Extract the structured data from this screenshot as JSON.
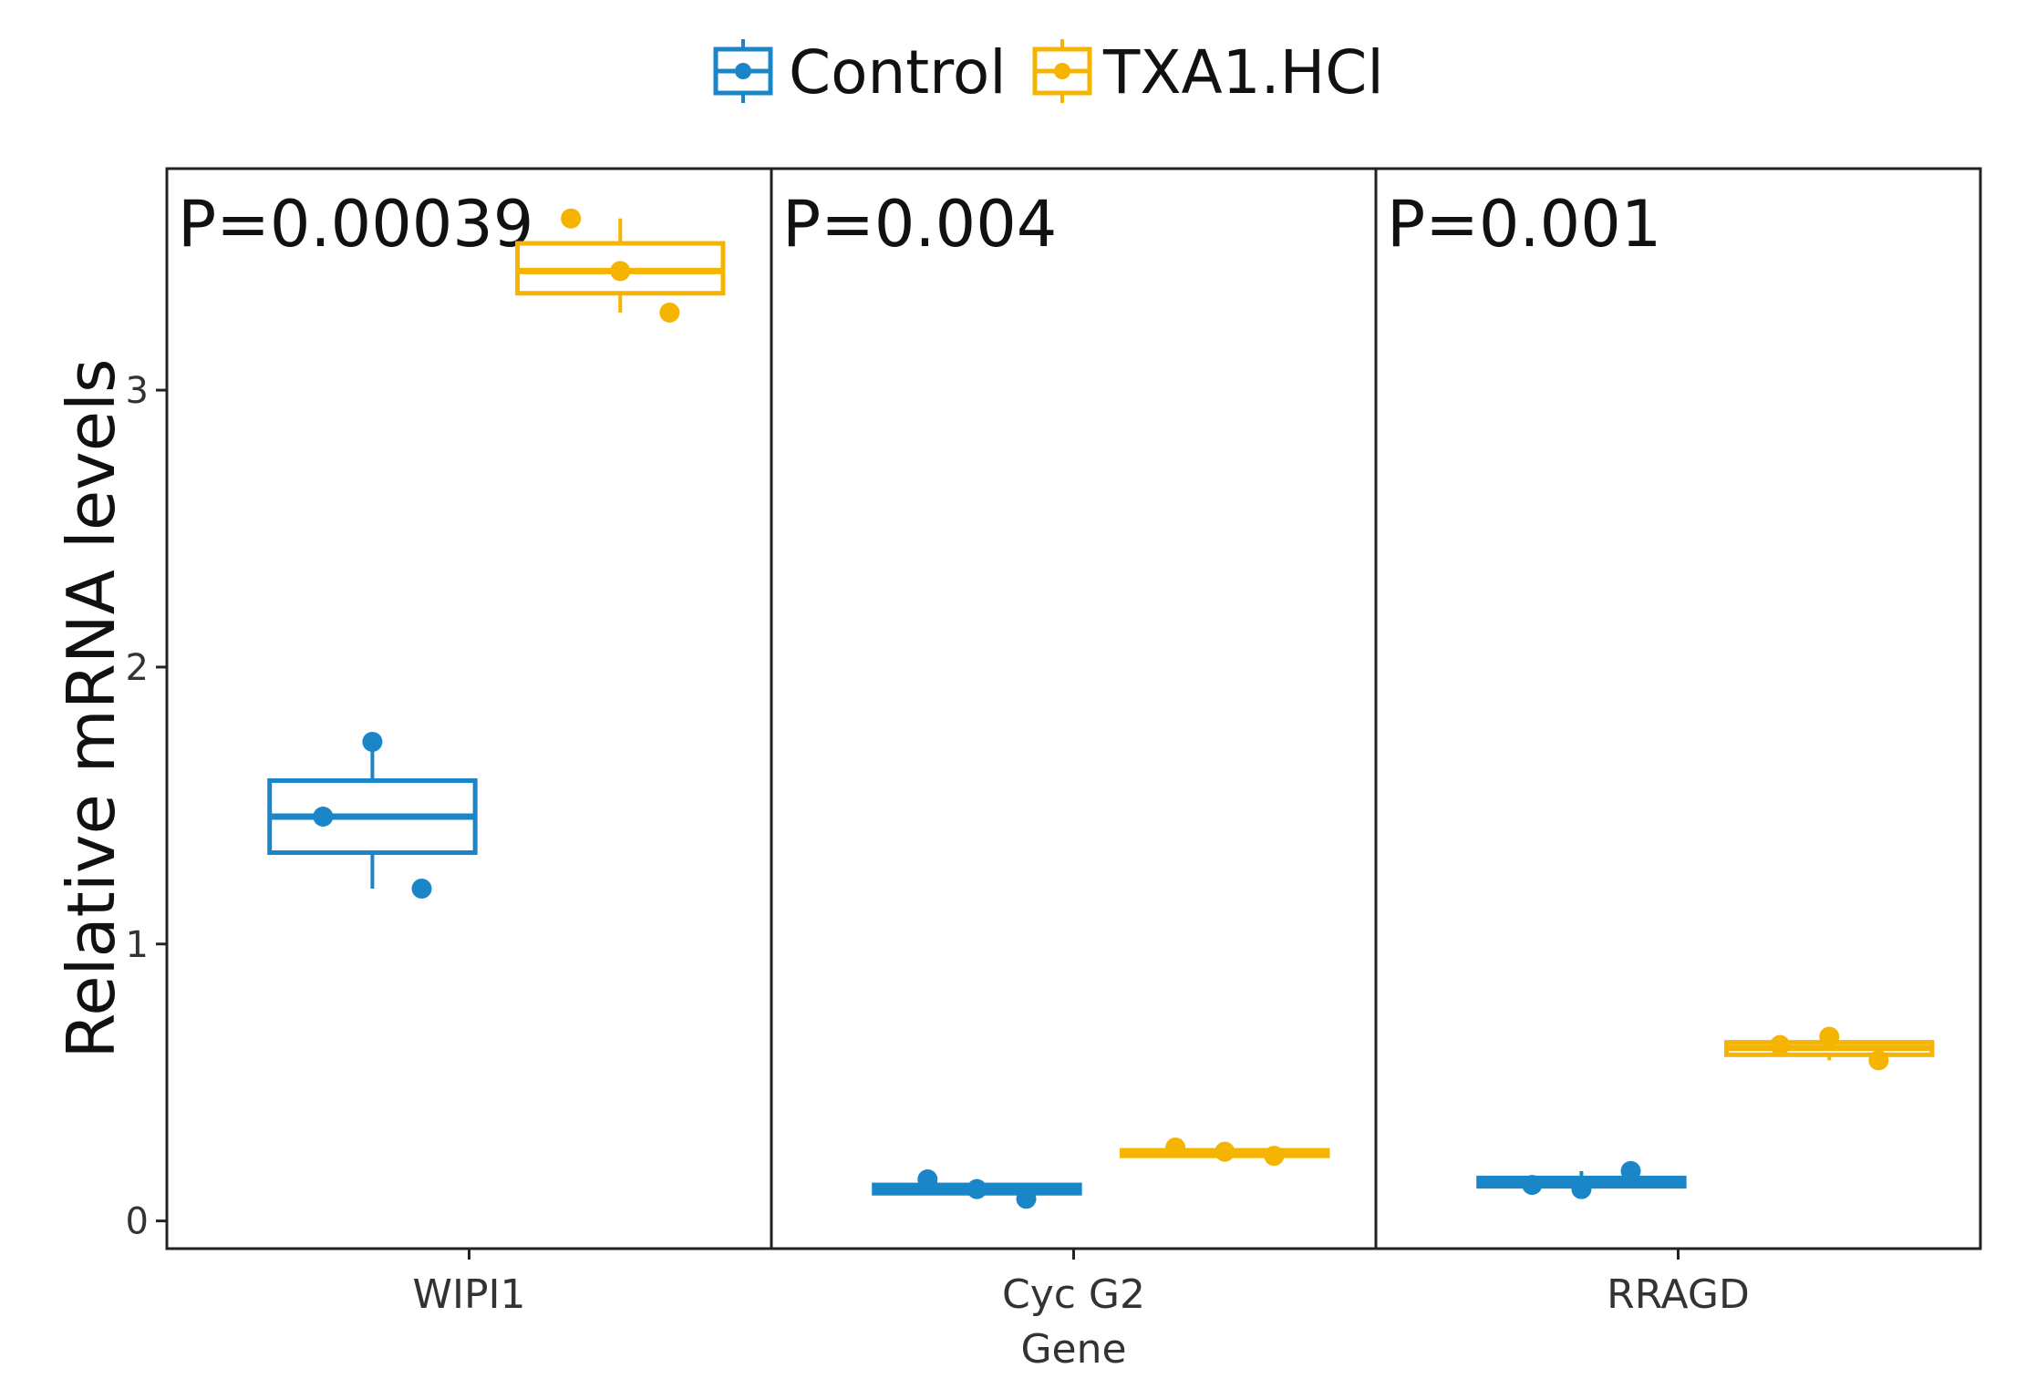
{
  "chart_data": {
    "type": "boxplot",
    "xlabel": "Gene",
    "ylabel": "Relative mRNA levels",
    "ylim": [
      -0.1,
      3.8
    ],
    "yticks": [
      0,
      1,
      2,
      3
    ],
    "legend": {
      "position": "top-center",
      "entries": [
        {
          "name": "Control",
          "color": "#1a86c8"
        },
        {
          "name": "TXA1.HCl",
          "color": "#f5b400"
        }
      ]
    },
    "panels": [
      {
        "gene": "WIPI1",
        "pvalue_label": "P=0.00039",
        "groups": [
          {
            "group": "Control",
            "q1": 1.33,
            "median": 1.46,
            "q3": 1.59,
            "whisker_low": 1.2,
            "whisker_high": 1.72,
            "points": [
              1.46,
              1.73,
              1.2
            ]
          },
          {
            "group": "TXA1.HCl",
            "q1": 3.35,
            "median": 3.43,
            "q3": 3.53,
            "whisker_low": 3.28,
            "whisker_high": 3.62,
            "points": [
              3.62,
              3.43,
              3.28
            ]
          }
        ]
      },
      {
        "gene": "Cyc G2",
        "pvalue_label": "P=0.004",
        "groups": [
          {
            "group": "Control",
            "q1": 0.1,
            "median": 0.115,
            "q3": 0.13,
            "whisker_low": 0.085,
            "whisker_high": 0.15,
            "points": [
              0.15,
              0.115,
              0.08
            ]
          },
          {
            "group": "TXA1.HCl",
            "q1": 0.235,
            "median": 0.245,
            "q3": 0.255,
            "whisker_low": 0.225,
            "whisker_high": 0.27,
            "points": [
              0.265,
              0.25,
              0.235
            ]
          }
        ]
      },
      {
        "gene": "RRAGD",
        "pvalue_label": "P=0.001",
        "groups": [
          {
            "group": "Control",
            "q1": 0.125,
            "median": 0.14,
            "q3": 0.155,
            "whisker_low": 0.11,
            "whisker_high": 0.18,
            "points": [
              0.13,
              0.115,
              0.18
            ]
          },
          {
            "group": "TXA1.HCl",
            "q1": 0.6,
            "median": 0.625,
            "q3": 0.645,
            "whisker_low": 0.58,
            "whisker_high": 0.66,
            "points": [
              0.635,
              0.665,
              0.58
            ]
          }
        ]
      }
    ]
  }
}
